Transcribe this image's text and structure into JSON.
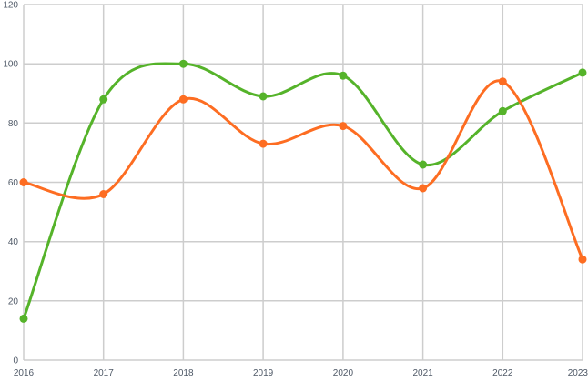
{
  "chart_data": {
    "type": "line",
    "title": "",
    "xlabel": "",
    "ylabel": "",
    "x": [
      2016,
      2017,
      2018,
      2019,
      2020,
      2021,
      2022,
      2023
    ],
    "x_tick_labels": [
      "2016",
      "2017",
      "2018",
      "2019",
      "2020",
      "2021",
      "2022",
      "2023"
    ],
    "y_ticks": [
      0,
      20,
      40,
      60,
      80,
      100,
      120
    ],
    "y_tick_labels": [
      "0",
      "20",
      "40",
      "60",
      "80",
      "100",
      "120"
    ],
    "ylim": [
      0,
      120
    ],
    "grid": true,
    "legend_position": "none",
    "line_style": "smooth",
    "series": [
      {
        "name": "series-green",
        "color": "#55b32a",
        "point_style": "circle",
        "values": [
          14,
          88,
          100,
          89,
          96,
          66,
          84,
          97
        ]
      },
      {
        "name": "series-orange",
        "color": "#fd6d22",
        "point_style": "circle",
        "values": [
          60,
          56,
          88,
          73,
          79,
          58,
          94,
          34
        ]
      }
    ]
  },
  "style": {
    "background_color": "#ffffff",
    "grid_color": "#cdcdcd",
    "tick_label_color": "#4e5866",
    "grid_line_width": 1.5,
    "series_line_width": 3,
    "point_radius": 4.5,
    "tick_font_size": 10
  }
}
